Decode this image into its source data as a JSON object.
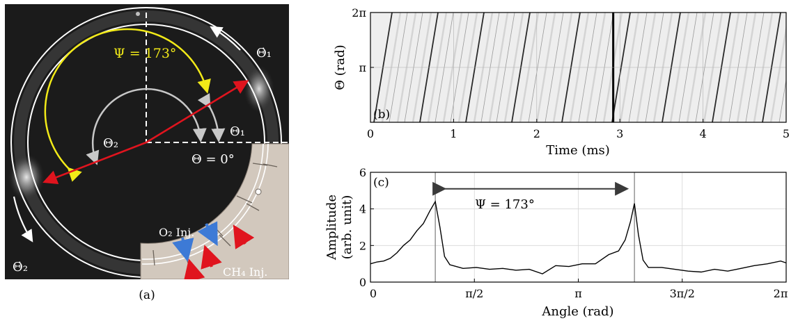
{
  "figure": {
    "panel_a": {
      "caption": "(a)",
      "psi_label": "Ψ = 173°",
      "theta1_label": "Θ₁",
      "theta2_label": "Θ₂",
      "theta1_dot_label": "Θ̇₁",
      "theta2_dot_label": "Θ̇₂",
      "theta0_label": "Θ = 0°",
      "o2_label": "O₂ Inj.",
      "ch4_label": "CH₄ Inj."
    },
    "panel_b": {
      "tag": "(b)",
      "ylabel": "Θ (rad)",
      "xlabel": "Time (ms)",
      "yticks": [
        "2π",
        "π"
      ],
      "xticks": [
        "0",
        "1",
        "2",
        "3",
        "4",
        "5"
      ]
    },
    "panel_c": {
      "tag": "(c)",
      "ylabel_line1": "Amplitude",
      "ylabel_line2": "(arb. unit)",
      "xlabel": "Angle (rad)",
      "psi_label": "Ψ = 173°",
      "yticks": [
        "0",
        "2",
        "4",
        "6"
      ],
      "xticks": [
        "0",
        "π/2",
        "π",
        "3π/2",
        "2π"
      ]
    }
  },
  "chart_data": [
    {
      "type": "heatmap",
      "panel": "b",
      "xlabel": "Time (ms)",
      "ylabel": "Θ (rad)",
      "xlim": [
        0,
        5
      ],
      "ylim": [
        0,
        6.2832
      ],
      "x_tick_labels": [
        "0",
        "1",
        "2",
        "3",
        "4",
        "5"
      ],
      "y_tick_labels": [
        "π",
        "2π"
      ],
      "dark_line_time_ms": 2.92,
      "grid": true
    },
    {
      "type": "line",
      "panel": "c",
      "xlabel": "Angle (rad)",
      "ylabel": "Amplitude (arb. unit)",
      "xlim": [
        0,
        6.2832
      ],
      "ylim": [
        0,
        6
      ],
      "grid": true,
      "peak_markers_rad": [
        0.98,
        3.99
      ],
      "annotation": "Ψ = 173°",
      "x": [
        0,
        0.1,
        0.2,
        0.3,
        0.4,
        0.5,
        0.6,
        0.7,
        0.8,
        0.9,
        0.98,
        1.05,
        1.12,
        1.2,
        1.4,
        1.6,
        1.8,
        2.0,
        2.2,
        2.4,
        2.6,
        2.8,
        3.0,
        3.2,
        3.4,
        3.6,
        3.75,
        3.85,
        3.93,
        3.99,
        4.05,
        4.12,
        4.2,
        4.4,
        4.6,
        4.8,
        5.0,
        5.2,
        5.4,
        5.6,
        5.8,
        6.0,
        6.2,
        6.2832
      ],
      "y": [
        1.0,
        1.1,
        1.15,
        1.3,
        1.6,
        2.0,
        2.3,
        2.8,
        3.2,
        3.9,
        4.4,
        3.0,
        1.4,
        0.95,
        0.75,
        0.8,
        0.7,
        0.75,
        0.65,
        0.7,
        0.45,
        0.9,
        0.85,
        1.0,
        1.0,
        1.5,
        1.7,
        2.3,
        3.3,
        4.3,
        2.6,
        1.2,
        0.8,
        0.8,
        0.7,
        0.6,
        0.55,
        0.7,
        0.6,
        0.75,
        0.9,
        1.0,
        1.15,
        1.05
      ]
    }
  ]
}
